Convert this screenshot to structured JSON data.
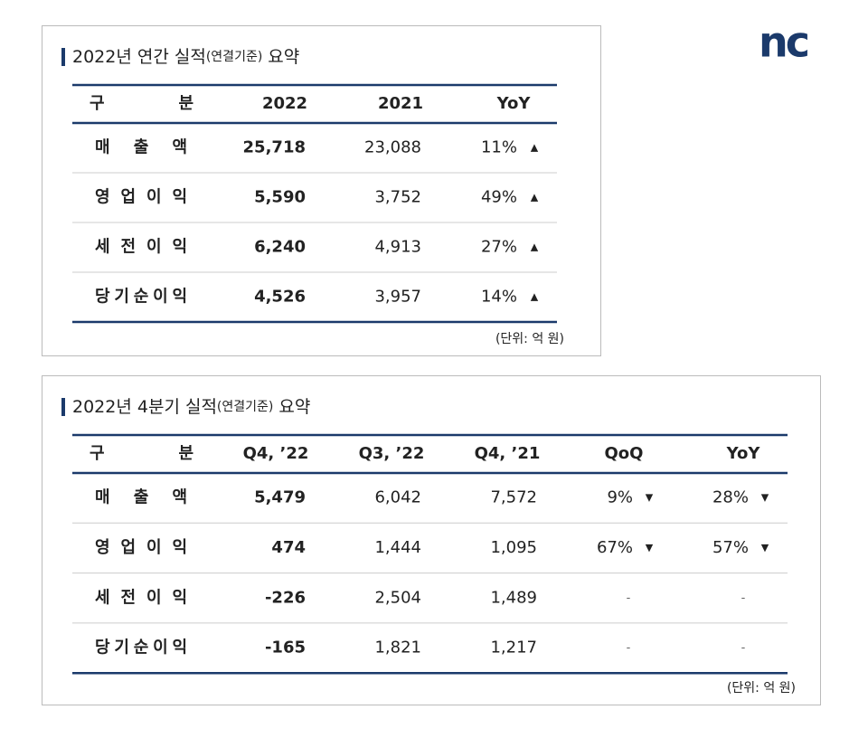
{
  "logo": "nc",
  "tables": [
    {
      "title": {
        "main": "2022년 연간 실적",
        "note": "(연결기준)",
        "tail": "요약"
      },
      "header": [
        "구 분",
        "2022",
        "2021",
        "YoY"
      ],
      "rows": [
        {
          "label": "매 출 액",
          "cells": [
            "25,718",
            "23,088",
            {
              "text": "11%",
              "arrow": "▲"
            }
          ]
        },
        {
          "label": "영 업 이 익",
          "cells": [
            "5,590",
            "3,752",
            {
              "text": "49%",
              "arrow": "▲"
            }
          ]
        },
        {
          "label": "세 전 이 익",
          "cells": [
            "6,240",
            "4,913",
            {
              "text": "27%",
              "arrow": "▲"
            }
          ]
        },
        {
          "label": "당기순이익",
          "cells": [
            "4,526",
            "3,957",
            {
              "text": "14%",
              "arrow": "▲"
            }
          ]
        }
      ],
      "unit": "(단위: 억 원)"
    },
    {
      "title": {
        "main": "2022년 4분기 실적",
        "note": "(연결기준)",
        "tail": "요약"
      },
      "header": [
        "구 분",
        "Q4, ’22",
        "Q3, ’22",
        "Q4, ’21",
        "QoQ",
        "YoY"
      ],
      "rows": [
        {
          "label": "매 출 액",
          "cells": [
            "5,479",
            "6,042",
            "7,572",
            {
              "text": "9%",
              "arrow": "▼"
            },
            {
              "text": "28%",
              "arrow": "▼"
            }
          ]
        },
        {
          "label": "영 업 이 익",
          "cells": [
            "474",
            "1,444",
            "1,095",
            {
              "text": "67%",
              "arrow": "▼"
            },
            {
              "text": "57%",
              "arrow": "▼"
            }
          ]
        },
        {
          "label": "세 전 이 익",
          "cells": [
            "-226",
            "2,504",
            "1,489",
            "-",
            "-"
          ]
        },
        {
          "label": "당기순이익",
          "cells": [
            "-165",
            "1,821",
            "1,217",
            "-",
            "-"
          ]
        }
      ],
      "unit": "(단위: 억 원)"
    }
  ]
}
